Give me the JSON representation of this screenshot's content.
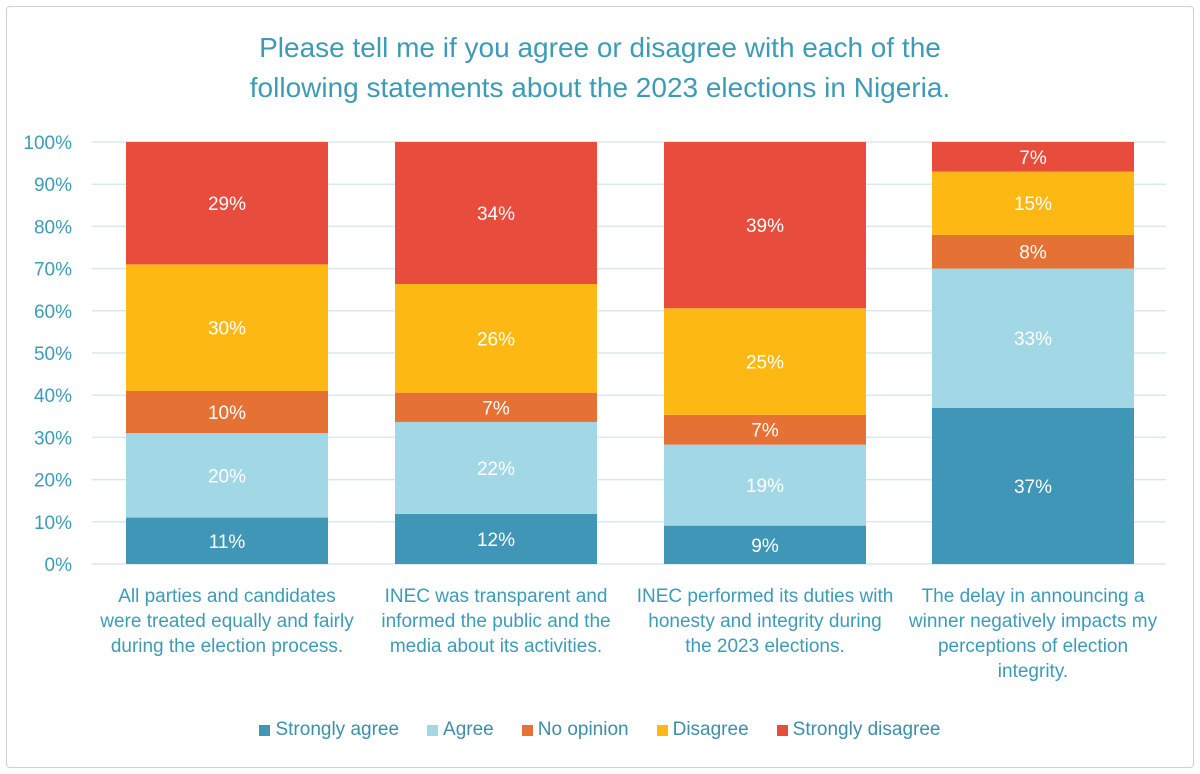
{
  "chart_data": {
    "type": "bar",
    "stacked": true,
    "title": "Please tell me if you agree or disagree with each of the following statements about the 2023 elections in Nigeria.",
    "title_lines": [
      "Please tell me if you agree or disagree with each of the",
      "following statements about the 2023 elections in Nigeria."
    ],
    "categories": [
      "All parties and candidates were treated equally and fairly during the election process.",
      "INEC was transparent and informed the public and the media about its activities.",
      "INEC performed its duties with honesty and integrity during the 2023 elections.",
      "The delay in announcing a winner negatively impacts my perceptions of election integrity."
    ],
    "series": [
      {
        "name": "Strongly agree",
        "color": "#4096b6",
        "values": [
          11,
          12,
          9,
          37
        ]
      },
      {
        "name": "Agree",
        "color": "#a2d7e6",
        "values": [
          20,
          22,
          19,
          33
        ]
      },
      {
        "name": "No opinion",
        "color": "#e57134",
        "values": [
          10,
          7,
          7,
          8
        ]
      },
      {
        "name": "Disagree",
        "color": "#fdb813",
        "values": [
          30,
          26,
          25,
          15
        ]
      },
      {
        "name": "Strongly disagree",
        "color": "#e84c3d",
        "values": [
          29,
          34,
          39,
          7
        ]
      }
    ],
    "yticks": [
      "0%",
      "10%",
      "20%",
      "30%",
      "40%",
      "50%",
      "60%",
      "70%",
      "80%",
      "90%",
      "100%"
    ],
    "ylim": [
      0,
      100
    ],
    "grid": true,
    "legend_position": "bottom",
    "label_color": "#3d9bb6"
  }
}
